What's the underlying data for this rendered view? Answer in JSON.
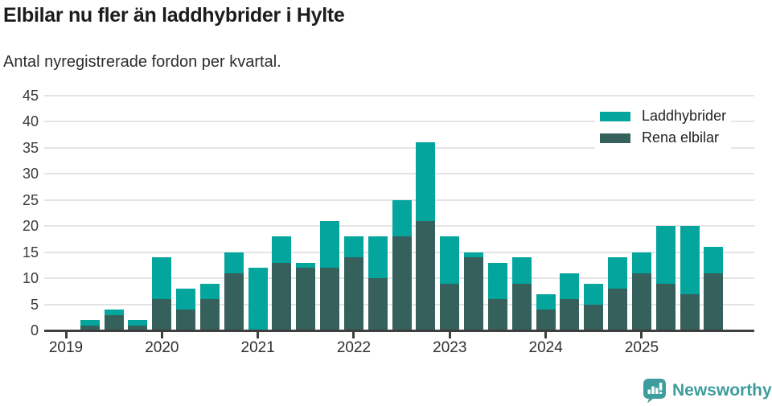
{
  "header": {
    "title": "Elbilar nu fler än laddhybrider i Hylte",
    "subtitle": "Antal nyregistrerade fordon per kvartal."
  },
  "chart_data": {
    "type": "bar",
    "stacked": true,
    "title": "Elbilar nu fler än laddhybrider i Hylte",
    "subtitle": "Antal nyregistrerade fordon per kvartal.",
    "xlabel": "",
    "ylabel": "",
    "ylim": [
      0,
      45
    ],
    "y_ticks": [
      0,
      5,
      10,
      15,
      20,
      25,
      30,
      35,
      40,
      45
    ],
    "grid": true,
    "legend_position": "top-right",
    "categories": [
      "Q1 2019",
      "Q2 2019",
      "Q3 2019",
      "Q4 2019",
      "Q1 2020",
      "Q2 2020",
      "Q3 2020",
      "Q4 2020",
      "Q1 2021",
      "Q2 2021",
      "Q3 2021",
      "Q4 2021",
      "Q1 2022",
      "Q2 2022",
      "Q3 2022",
      "Q4 2022",
      "Q1 2023",
      "Q2 2023",
      "Q3 2023",
      "Q4 2023",
      "Q1 2024",
      "Q2 2024",
      "Q3 2024",
      "Q4 2024",
      "Q1 2025",
      "Q2 2025",
      "Q3 2025",
      "Q4 2025"
    ],
    "x_tick_labels": [
      "2019",
      "2020",
      "2021",
      "2022",
      "2023",
      "2024",
      "2025"
    ],
    "series": [
      {
        "name": "Laddhybrider",
        "color": "#03a59d",
        "values": [
          0,
          1,
          1,
          1,
          8,
          4,
          3,
          4,
          12,
          5,
          1,
          9,
          4,
          8,
          7,
          15,
          9,
          1,
          7,
          5,
          3,
          5,
          4,
          6,
          4,
          11,
          13,
          5
        ]
      },
      {
        "name": "Rena elbilar",
        "color": "#36605b",
        "values": [
          0,
          1,
          3,
          1,
          6,
          4,
          6,
          11,
          0,
          13,
          12,
          12,
          14,
          10,
          18,
          21,
          9,
          14,
          6,
          9,
          4,
          6,
          5,
          8,
          11,
          9,
          7,
          11
        ]
      }
    ],
    "stack_note": "Rena elbilar stacked at bottom, Laddhybrider on top"
  },
  "legend": {
    "items": [
      {
        "label": "Laddhybrider",
        "color": "#03a59d"
      },
      {
        "label": "Rena elbilar",
        "color": "#36605b"
      }
    ]
  },
  "footer": {
    "brand": "Newsworthy",
    "brand_color": "#3f9c9c"
  }
}
